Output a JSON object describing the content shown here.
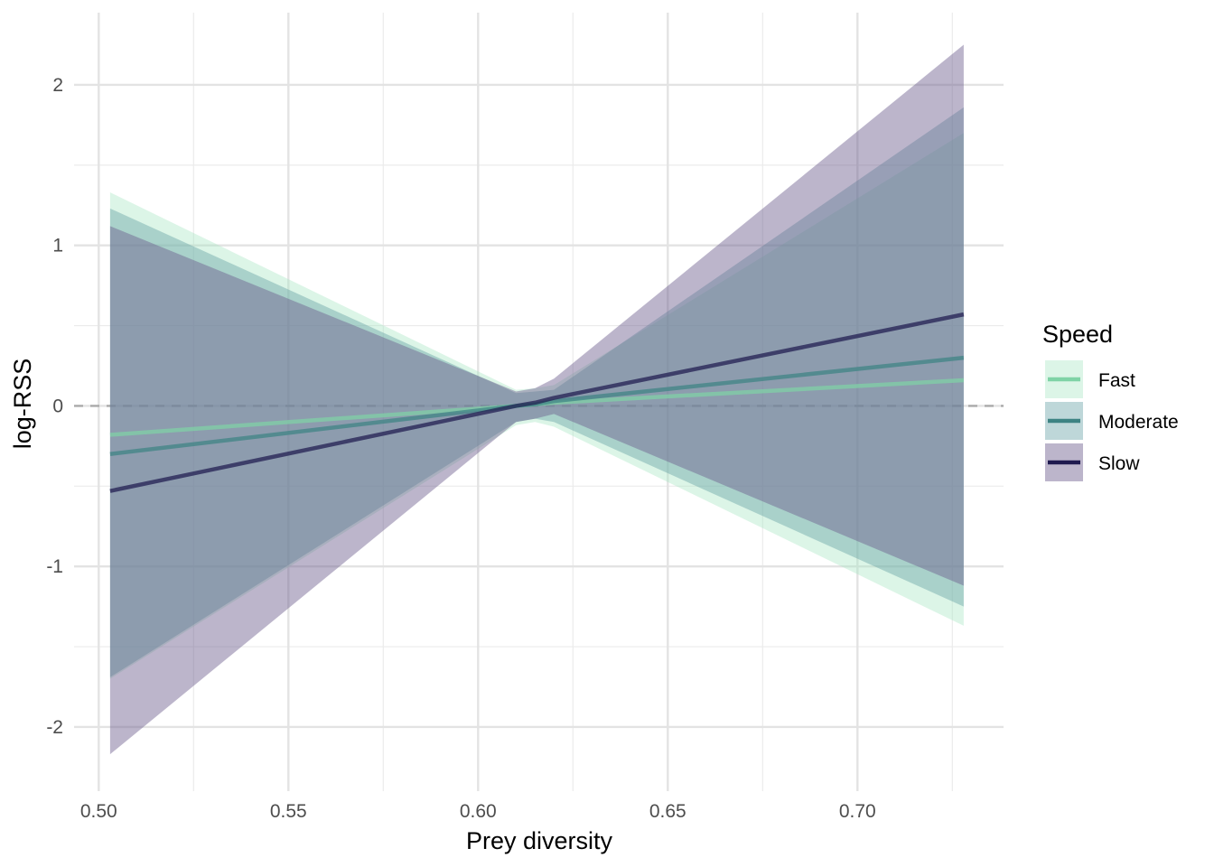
{
  "chart_data": {
    "type": "line",
    "xlabel": "Prey diversity",
    "ylabel": "log-RSS",
    "xlim": [
      0.4935,
      0.7385
    ],
    "ylim": [
      -2.4,
      2.45
    ],
    "x_ticks": [
      0.5,
      0.55,
      0.6,
      0.65,
      0.7
    ],
    "x_tick_labels": [
      "0.50",
      "0.55",
      "0.60",
      "0.65",
      "0.70"
    ],
    "y_ticks": [
      -2,
      -1,
      0,
      1,
      2
    ],
    "y_tick_labels": [
      "-2",
      "-1",
      "0",
      "1",
      "2"
    ],
    "reference_line": {
      "y": 0,
      "style": "dashed",
      "color": "#aaaaaa"
    },
    "grid": true,
    "legend": {
      "title": "Speed",
      "position": "right"
    },
    "series": [
      {
        "name": "Fast",
        "color": "#7fd3a6",
        "fill": "#a7e6c4",
        "fill_opacity": 0.4,
        "x": [
          0.503,
          0.61,
          0.615,
          0.62,
          0.728
        ],
        "y": [
          -0.18,
          0.0,
          0.01,
          0.02,
          0.16
        ],
        "lower": [
          -1.7,
          -0.12,
          -0.1,
          -0.13,
          -1.37
        ],
        "upper": [
          1.33,
          0.1,
          0.11,
          0.13,
          1.7
        ]
      },
      {
        "name": "Moderate",
        "color": "#3d8383",
        "fill": "#5d9aa0",
        "fill_opacity": 0.4,
        "x": [
          0.503,
          0.61,
          0.615,
          0.62,
          0.728
        ],
        "y": [
          -0.3,
          0.0,
          0.01,
          0.03,
          0.3
        ],
        "lower": [
          -1.69,
          -0.1,
          -0.08,
          -0.1,
          -1.25
        ],
        "upper": [
          1.23,
          0.08,
          0.09,
          0.1,
          1.86
        ]
      },
      {
        "name": "Slow",
        "color": "#1f1a4f",
        "fill": "#6b5b8c",
        "fill_opacity": 0.45,
        "x": [
          0.503,
          0.61,
          0.615,
          0.62,
          0.728
        ],
        "y": [
          -0.53,
          0.0,
          0.02,
          0.05,
          0.57
        ],
        "lower": [
          -2.17,
          -0.1,
          -0.08,
          -0.05,
          -1.12
        ],
        "upper": [
          1.12,
          0.09,
          0.11,
          0.17,
          2.25
        ]
      }
    ]
  }
}
